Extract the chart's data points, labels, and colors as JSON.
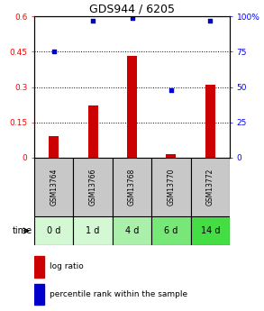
{
  "title": "GDS944 / 6205",
  "categories": [
    "GSM13764",
    "GSM13766",
    "GSM13768",
    "GSM13770",
    "GSM13772"
  ],
  "time_labels": [
    "0 d",
    "1 d",
    "4 d",
    "6 d",
    "14 d"
  ],
  "log_ratio": [
    0.09,
    0.22,
    0.43,
    0.015,
    0.31
  ],
  "percentile_rank": [
    75,
    97,
    99,
    48,
    97
  ],
  "bar_color": "#cc0000",
  "dot_color": "#0000cc",
  "left_ylim": [
    0,
    0.6
  ],
  "right_ylim": [
    0,
    100
  ],
  "left_yticks": [
    0,
    0.15,
    0.3,
    0.45,
    0.6
  ],
  "left_yticklabels": [
    "0",
    "0.15",
    "0.3",
    "0.45",
    "0.6"
  ],
  "right_yticks": [
    0,
    25,
    50,
    75,
    100
  ],
  "right_yticklabels": [
    "0",
    "25",
    "50",
    "75",
    "100%"
  ],
  "hline_values": [
    0.15,
    0.3,
    0.45
  ],
  "gsm_bg_color": "#c8c8c8",
  "time_bg_colors": [
    "#d4f7d4",
    "#d4f7d4",
    "#aaf0aa",
    "#77e877",
    "#44dd44"
  ],
  "legend_bar_label": "log ratio",
  "legend_dot_label": "percentile rank within the sample",
  "figsize": [
    2.93,
    3.45
  ],
  "dpi": 100
}
